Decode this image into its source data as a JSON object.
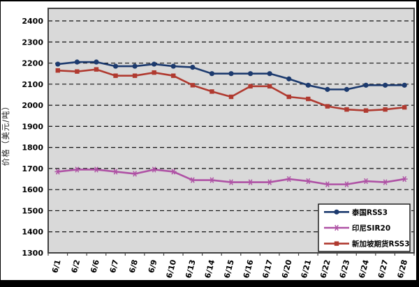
{
  "chart_data": {
    "type": "line",
    "title": "",
    "xlabel": "",
    "ylabel": "价格（美元/吨）",
    "ylim": [
      1300,
      2400
    ],
    "yticks": [
      1300,
      1400,
      1500,
      1600,
      1700,
      1800,
      1900,
      2000,
      2100,
      2200,
      2300,
      2400
    ],
    "grid": "horizontal-dashed",
    "legend_position": "bottom-right-inside",
    "plot_bg": "#d9d9d9",
    "plot_border": "#404040",
    "gridline_color": "#111111",
    "categories": [
      "6/1",
      "6/2",
      "6/6",
      "6/7",
      "6/8",
      "6/9",
      "6/10",
      "6/13",
      "6/14",
      "6/15",
      "6/16",
      "6/17",
      "6/20",
      "6/21",
      "6/22",
      "6/23",
      "6/24",
      "6/27",
      "6/28"
    ],
    "series": [
      {
        "name": "泰国RSS3",
        "color": "#1c3a6e",
        "marker": "circle",
        "values": [
          2195,
          2205,
          2205,
          2185,
          2185,
          2195,
          2185,
          2180,
          2150,
          2150,
          2150,
          2150,
          2125,
          2095,
          2075,
          2075,
          2095,
          2095,
          2095
        ]
      },
      {
        "name": "印尼SIR20",
        "color": "#af52a5",
        "marker": "star",
        "values": [
          1685,
          1695,
          1695,
          1685,
          1675,
          1695,
          1685,
          1645,
          1645,
          1635,
          1635,
          1635,
          1650,
          1640,
          1625,
          1625,
          1640,
          1635,
          1650
        ]
      },
      {
        "name": "新加坡期货RSS3",
        "color": "#b03a30",
        "marker": "square",
        "values": [
          2165,
          2160,
          2170,
          2140,
          2140,
          2155,
          2140,
          2095,
          2065,
          2040,
          2090,
          2090,
          2040,
          2030,
          1995,
          1980,
          1975,
          1980,
          1990
        ]
      }
    ]
  }
}
